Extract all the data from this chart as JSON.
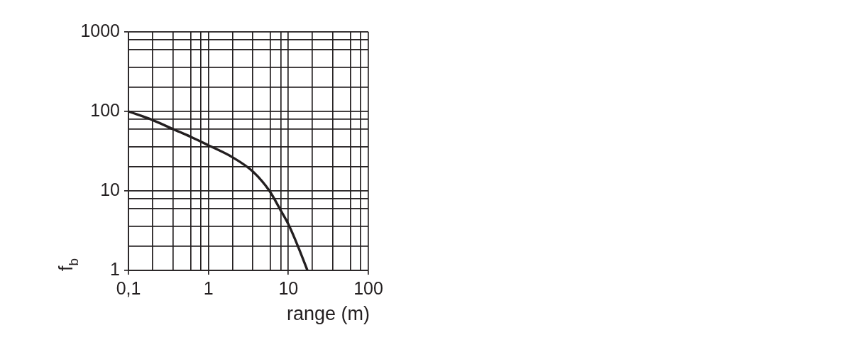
{
  "chart_data": {
    "type": "line",
    "xlabel": "range (m)",
    "ylabel": "f$_{b}$",
    "x": [
      0.1,
      0.2,
      0.36,
      0.6,
      1,
      2,
      3.6,
      5.8,
      8,
      10,
      13.2,
      17.3
    ],
    "series": [
      {
        "color": "#231f20",
        "values": [
          100,
          78,
          60,
          48,
          37.5,
          26.5,
          17.5,
          10,
          5.7,
          3.8,
          2,
          1
        ]
      }
    ],
    "log": "xy",
    "xlim": [
      0.1,
      100
    ],
    "ylim": [
      1,
      1000
    ],
    "xticks": [
      {
        "value": 0.1,
        "label": "0,1"
      },
      {
        "value": 0.2,
        "label": null
      },
      {
        "value": 0.36,
        "label": null
      },
      {
        "value": 0.6,
        "label": null
      },
      {
        "value": 0.8,
        "label": null
      },
      1,
      {
        "value": 2,
        "label": null
      },
      {
        "value": 3.6,
        "label": null
      },
      {
        "value": 6,
        "label": null
      },
      {
        "value": 8,
        "label": null
      },
      10,
      {
        "value": 20,
        "label": null
      },
      {
        "value": 36,
        "label": null
      },
      {
        "value": 60,
        "label": null
      },
      {
        "value": 80,
        "label": null
      },
      100
    ],
    "yticks": [
      1,
      {
        "value": 2,
        "label": null
      },
      {
        "value": 3.6,
        "label": null
      },
      {
        "value": 6,
        "label": null
      },
      {
        "value": 8,
        "label": null
      },
      10,
      {
        "value": 20,
        "label": null
      },
      {
        "value": 36,
        "label": null
      },
      {
        "value": 60,
        "label": null
      },
      {
        "value": 80,
        "label": null
      },
      100,
      {
        "value": 200,
        "label": null
      },
      {
        "value": 360,
        "label": null
      },
      {
        "value": 600,
        "label": null
      },
      {
        "value": 800,
        "label": null
      },
      1000
    ],
    "grid": true,
    "marker": "none",
    "line_style": "solid"
  }
}
